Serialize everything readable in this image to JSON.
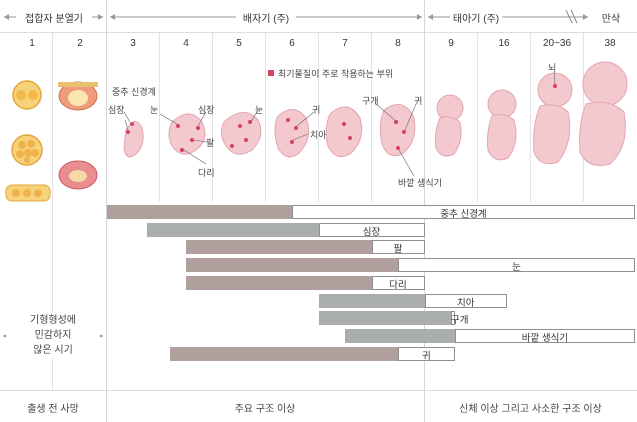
{
  "periods": {
    "pre_embryo": "접합자 분열기",
    "embryo": "배자기 (주)",
    "fetus": "태아기 (주)",
    "term": "만삭"
  },
  "weeks": [
    "1",
    "2",
    "3",
    "4",
    "5",
    "6",
    "7",
    "8",
    "9",
    "16",
    "20~36",
    "38"
  ],
  "legend": "최기물질이 주로 작용하는 부위",
  "organ_labels": {
    "cns_week3": "중추 신경계",
    "heart_week3": "심장",
    "eye_week4": "눈",
    "heart_week4": "심장",
    "arm_week4": "팔",
    "leg_week4": "다리",
    "eye_week5": "눈",
    "ear_week6": "귀",
    "teeth_week7": "치아",
    "palate_week8": "구개",
    "ear_week8": "귀",
    "genitalia_week8": "바깥 생식기",
    "brain_week20": "뇌"
  },
  "bars": [
    {
      "label": "중추 신경계",
      "start_week": 3,
      "critical_end_week": 6,
      "end_week": 38
    },
    {
      "label": "심장",
      "start_week": 3.5,
      "critical_end_week": 6.5,
      "end_week": 8.5
    },
    {
      "label": "팔",
      "start_week": 4,
      "critical_end_week": 7.5,
      "end_week": 8.5
    },
    {
      "label": "눈",
      "start_week": 4,
      "critical_end_week": 8,
      "end_week": 38
    },
    {
      "label": "다리",
      "start_week": 4,
      "critical_end_week": 7.5,
      "end_week": 8.5
    },
    {
      "label": "치아",
      "start_week": 6.5,
      "critical_end_week": 8.5,
      "end_week": 16.5
    },
    {
      "label": "구개",
      "start_week": 6.5,
      "critical_end_week": 9,
      "end_week": 9.5
    },
    {
      "label": "바깥 생식기",
      "start_week": 7,
      "critical_end_week": 9.5,
      "end_week": 38
    },
    {
      "label": "귀",
      "start_week": 3.8,
      "critical_end_week": 8,
      "end_week": 9.5
    }
  ],
  "left_note": [
    "기형형성에",
    "민감하지",
    "않은 시기"
  ],
  "footer": {
    "pre_embryo": "출생 전 사망",
    "embryo": "주요 구조 이상",
    "fetus": "신체 이상 그리고 사소한 구조 이상"
  },
  "colors": {
    "critical": "#a9adac",
    "less_sensitive": "#b09f9c",
    "embryo_pink": "#f3c9cf",
    "accent_red": "#d8425d"
  }
}
